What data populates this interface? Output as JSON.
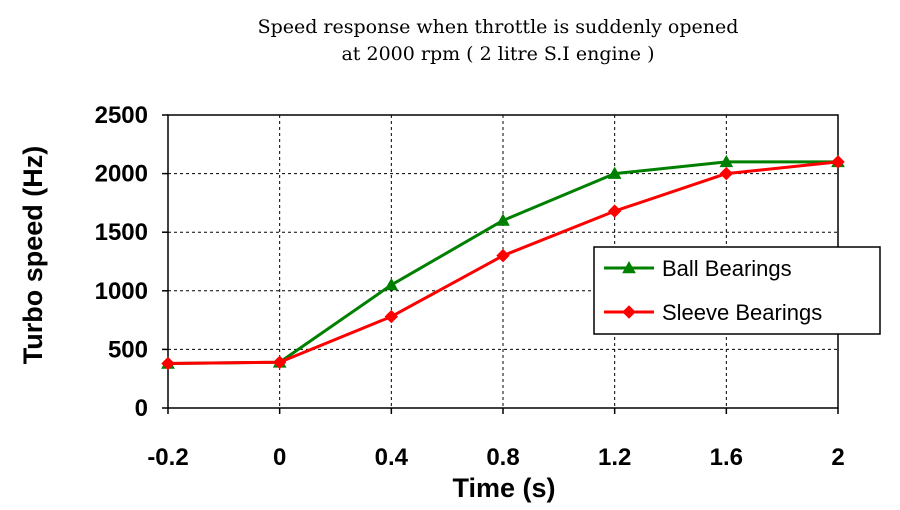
{
  "chart_data": {
    "type": "line",
    "title_lines": [
      "Speed response  when throttle is suddenly opened",
      "at 2000 rpm ( 2 litre S.I engine )"
    ],
    "xlabel": "Time (s)",
    "ylabel": "Turbo speed (Hz)",
    "categories": [
      "-0.2",
      "0",
      "0.4",
      "0.8",
      "1.2",
      "1.6",
      "2"
    ],
    "ylim": [
      0,
      2500
    ],
    "yticks": [
      "0",
      "500",
      "1000",
      "1500",
      "2000",
      "2500"
    ],
    "grid": true,
    "legend_position": "right",
    "series": [
      {
        "name": "Ball Bearings",
        "color": "#008000",
        "marker": "triangle",
        "values": [
          380,
          390,
          1050,
          1600,
          2000,
          2100,
          2100
        ]
      },
      {
        "name": "Sleeve Bearings",
        "color": "#ff0000",
        "marker": "diamond",
        "values": [
          380,
          390,
          780,
          1300,
          1680,
          2000,
          2100
        ]
      }
    ]
  }
}
